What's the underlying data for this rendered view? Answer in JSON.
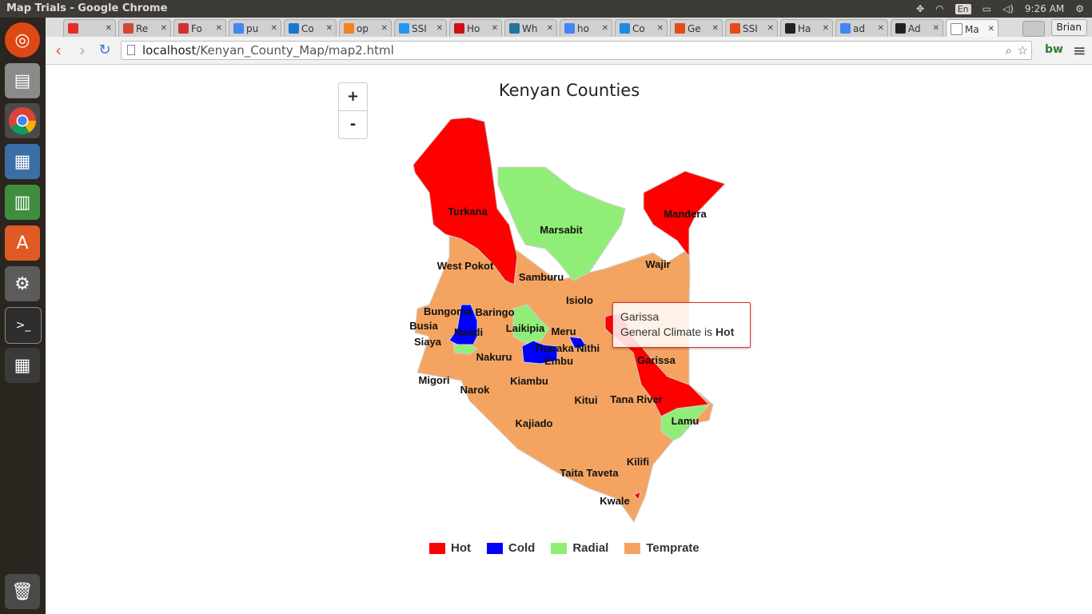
{
  "window": {
    "title": "Map Trials - Google Chrome"
  },
  "system_tray": {
    "keyboard": "En",
    "time": "9:26 AM"
  },
  "tabs": [
    {
      "label": "",
      "favicon": "youtube-icon",
      "color": "#e52d27"
    },
    {
      "label": "Re",
      "favicon": "gmail-icon",
      "color": "#d44638"
    },
    {
      "label": "Fo",
      "favicon": "fp-icon",
      "color": "#d32f2f"
    },
    {
      "label": "pu",
      "favicon": "google-icon",
      "color": "#4285f4"
    },
    {
      "label": "Co",
      "favicon": "circle-icon",
      "color": "#1976d2"
    },
    {
      "label": "op",
      "favicon": "stackoverflow-icon",
      "color": "#f48024"
    },
    {
      "label": "SSI",
      "favicon": "ssl-icon",
      "color": "#2196f3"
    },
    {
      "label": "Ho",
      "favicon": "opera-icon",
      "color": "#cc0f16"
    },
    {
      "label": "Wh",
      "favicon": "wordpress-icon",
      "color": "#21759b"
    },
    {
      "label": "ho",
      "favicon": "google-icon",
      "color": "#4285f4"
    },
    {
      "label": "Co",
      "favicon": "gear-icon",
      "color": "#1e88e5"
    },
    {
      "label": "Ge",
      "favicon": "ge-icon",
      "color": "#e64a19"
    },
    {
      "label": "SSI",
      "favicon": "ssl-icon",
      "color": "#e64a19"
    },
    {
      "label": "Ha",
      "favicon": "github-icon",
      "color": "#222222"
    },
    {
      "label": "ad",
      "favicon": "google-icon",
      "color": "#4285f4"
    },
    {
      "label": "Ad",
      "favicon": "github-icon",
      "color": "#222222"
    },
    {
      "label": "Ma",
      "favicon": "page-icon",
      "color": "#ffffff"
    }
  ],
  "profile": {
    "name": "Brian"
  },
  "address": {
    "host": "localhost",
    "path": "/Kenyan_County_Map/map2.html"
  },
  "map": {
    "title": "Kenyan Counties",
    "zoom_in": "+",
    "zoom_out": "-"
  },
  "tooltip": {
    "county": "Garissa",
    "prefix": "General Climate is ",
    "climate": "Hot"
  },
  "legend": [
    {
      "label": "Hot",
      "color": "#ff0000"
    },
    {
      "label": "Cold",
      "color": "#0000ff"
    },
    {
      "label": "Radial",
      "color": "#90ee78"
    },
    {
      "label": "Temprate",
      "color": "#f4a460"
    }
  ],
  "counties": [
    {
      "name": "Turkana",
      "climate": "Hot"
    },
    {
      "name": "Marsabit",
      "climate": "Radial"
    },
    {
      "name": "Mandera",
      "climate": "Hot"
    },
    {
      "name": "Wajir",
      "climate": "Temprate"
    },
    {
      "name": "West Pokot",
      "climate": "Temprate"
    },
    {
      "name": "Samburu",
      "climate": "Temprate"
    },
    {
      "name": "Isiolo",
      "climate": "Temprate"
    },
    {
      "name": "Bungoma",
      "climate": "Temprate"
    },
    {
      "name": "Baringo",
      "climate": "Temprate"
    },
    {
      "name": "Busia",
      "climate": "Temprate"
    },
    {
      "name": "Nandi",
      "climate": "Cold"
    },
    {
      "name": "Laikipia",
      "climate": "Radial"
    },
    {
      "name": "Meru",
      "climate": "Temprate"
    },
    {
      "name": "Siaya",
      "climate": "Temprate"
    },
    {
      "name": "Tharaka Nithi",
      "climate": "Cold"
    },
    {
      "name": "Nakuru",
      "climate": "Temprate"
    },
    {
      "name": "Embu",
      "climate": "Temprate"
    },
    {
      "name": "Garissa",
      "climate": "Hot"
    },
    {
      "name": "Migori",
      "climate": "Temprate"
    },
    {
      "name": "Kiambu",
      "climate": "Temprate"
    },
    {
      "name": "Narok",
      "climate": "Temprate"
    },
    {
      "name": "Kitui",
      "climate": "Temprate"
    },
    {
      "name": "Tana River",
      "climate": "Temprate"
    },
    {
      "name": "Lamu",
      "climate": "Radial"
    },
    {
      "name": "Kajiado",
      "climate": "Temprate"
    },
    {
      "name": "Kilifi",
      "climate": "Temprate"
    },
    {
      "name": "Taita Taveta",
      "climate": "Temprate"
    },
    {
      "name": "Kwale",
      "climate": "Temprate"
    }
  ]
}
